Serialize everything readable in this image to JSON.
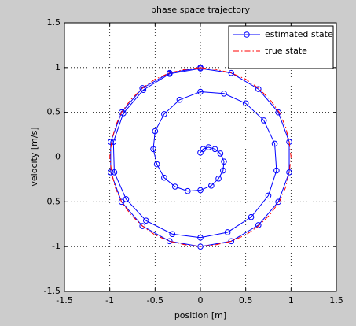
{
  "chart_data": {
    "type": "line",
    "title": "phase space trajectory",
    "xlabel": "position [m]",
    "ylabel": "velocity [m/s]",
    "xlim": [
      -1.5,
      1.5
    ],
    "ylim": [
      -1.5,
      1.5
    ],
    "xticks": [
      -1.5,
      -1,
      -0.5,
      0,
      0.5,
      1,
      1.5
    ],
    "yticks": [
      -1.5,
      -1,
      -0.5,
      0,
      0.5,
      1,
      1.5
    ],
    "grid": true,
    "legend": "upper right",
    "series": [
      {
        "name": "estimated state",
        "color": "#0000ff",
        "marker": "o",
        "linestyle": "solid",
        "x": [
          0,
          0.03,
          0.09,
          0.16,
          0.22,
          0.26,
          0.25,
          0.2,
          0.12,
          0,
          -0.14,
          -0.28,
          -0.4,
          -0.48,
          -0.52,
          -0.5,
          -0.4,
          -0.23,
          0,
          0.26,
          0.5,
          0.7,
          0.82,
          0.84,
          0.75,
          0.56,
          0.3,
          0,
          -0.31,
          -0.6,
          -0.82,
          -0.95,
          -0.96,
          -0.85,
          -0.63,
          -0.34,
          0,
          0.34,
          0.64,
          0.86,
          0.98,
          0.98,
          0.86,
          0.64,
          0.34,
          0,
          -0.34,
          -0.64,
          -0.87,
          -0.99,
          -0.99,
          -0.87,
          -0.64,
          -0.34,
          0
        ],
        "values": [
          0.05,
          0.09,
          0.11,
          0.09,
          0.04,
          -0.05,
          -0.15,
          -0.24,
          -0.32,
          -0.37,
          -0.38,
          -0.33,
          -0.23,
          -0.08,
          0.09,
          0.29,
          0.48,
          0.64,
          0.73,
          0.71,
          0.6,
          0.41,
          0.15,
          -0.15,
          -0.43,
          -0.67,
          -0.84,
          -0.9,
          -0.86,
          -0.71,
          -0.47,
          -0.17,
          0.17,
          0.49,
          0.75,
          0.93,
          0.99,
          0.94,
          0.76,
          0.5,
          0.17,
          -0.17,
          -0.5,
          -0.76,
          -0.94,
          -1,
          -0.94,
          -0.77,
          -0.5,
          -0.17,
          0.17,
          0.5,
          0.77,
          0.94,
          1
        ]
      },
      {
        "name": "true state",
        "color": "#ff0000",
        "marker": "none",
        "linestyle": "dashdot",
        "x": [
          0,
          0.17,
          0.34,
          0.5,
          0.64,
          0.77,
          0.87,
          0.94,
          0.98,
          1,
          0.98,
          0.94,
          0.87,
          0.77,
          0.64,
          0.5,
          0.34,
          0.17,
          0,
          -0.17,
          -0.34,
          -0.5,
          -0.64,
          -0.77,
          -0.87,
          -0.94,
          -0.98,
          -1,
          -0.98,
          -0.94,
          -0.87,
          -0.77,
          -0.64,
          -0.5,
          -0.34,
          -0.17,
          0
        ],
        "values": [
          1,
          0.98,
          0.94,
          0.87,
          0.77,
          0.64,
          0.5,
          0.34,
          0.17,
          0,
          -0.17,
          -0.34,
          -0.5,
          -0.64,
          -0.77,
          -0.87,
          -0.94,
          -0.98,
          -1,
          -0.98,
          -0.94,
          -0.87,
          -0.77,
          -0.64,
          -0.5,
          -0.34,
          -0.17,
          0,
          0.17,
          0.34,
          0.5,
          0.64,
          0.77,
          0.87,
          0.94,
          0.98,
          1
        ]
      }
    ]
  }
}
